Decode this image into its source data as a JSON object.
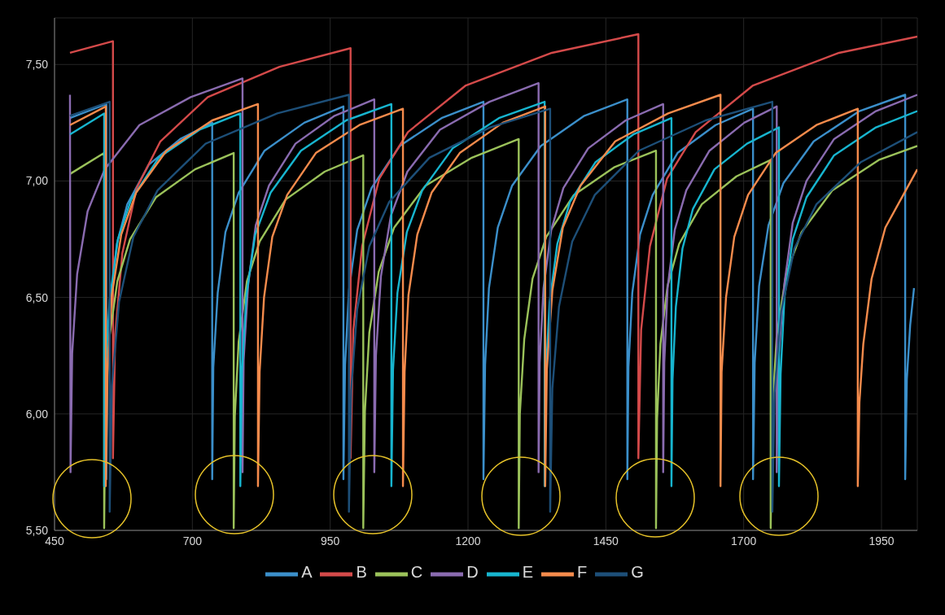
{
  "chart_data": {
    "type": "line",
    "xlim": [
      450,
      2015
    ],
    "xticks": [
      450,
      700,
      950,
      1200,
      1450,
      1700,
      1950
    ],
    "ylim": [
      5.5,
      7.7
    ],
    "yticks": [
      {
        "value": 5.5,
        "label": "5,50"
      },
      {
        "value": 6,
        "label": "6,00"
      },
      {
        "value": 6.5,
        "label": "6,50"
      },
      {
        "value": 7,
        "label": "7,00"
      },
      {
        "value": 7.5,
        "label": "7,50"
      }
    ],
    "grid": true,
    "legend": "bottom",
    "series": [
      {
        "name": "A",
        "color": "#3b8fca",
        "x": [
          478,
          544,
          544,
          546,
          552,
          563,
          582,
          621,
          678,
          736,
          736,
          738,
          746,
          760,
          784,
          831,
          903,
          974,
          974,
          977,
          984,
          999,
          1025,
          1076,
          1152,
          1228,
          1228,
          1231,
          1238,
          1254,
          1280,
          1332,
          1411,
          1489,
          1489,
          1491,
          1498,
          1512,
          1535,
          1580,
          1649,
          1717,
          1717,
          1720,
          1728,
          1745,
          1772,
          1827,
          1910,
          1993,
          1993,
          1996,
          2002,
          2009
        ],
        "values": [
          7.27,
          7.33,
          5.72,
          6.18,
          6.49,
          6.73,
          6.9,
          7.07,
          7.18,
          7.25,
          5.72,
          6.2,
          6.52,
          6.78,
          6.95,
          7.13,
          7.25,
          7.32,
          5.72,
          6.21,
          6.53,
          6.79,
          6.97,
          7.15,
          7.27,
          7.34,
          5.72,
          6.21,
          6.54,
          6.8,
          6.98,
          7.15,
          7.28,
          7.35,
          5.72,
          6.2,
          6.52,
          6.77,
          6.94,
          7.12,
          7.24,
          7.31,
          5.72,
          6.22,
          6.55,
          6.81,
          6.99,
          7.17,
          7.3,
          7.37,
          5.72,
          6.15,
          6.38,
          6.54
        ]
      },
      {
        "name": "B",
        "color": "#d44a4a",
        "x": [
          478,
          556,
          556,
          560,
          573,
          599,
          642,
          728,
          858,
          987,
          987,
          992,
          1008,
          1039,
          1091,
          1196,
          1352,
          1509,
          1509,
          1514,
          1530,
          1561,
          1613,
          1717,
          1873,
          2015
        ],
        "values": [
          7.55,
          7.6,
          5.81,
          6.34,
          6.69,
          6.97,
          7.17,
          7.36,
          7.49,
          7.57,
          5.81,
          6.36,
          6.72,
          7.01,
          7.21,
          7.41,
          7.55,
          7.63,
          5.81,
          6.36,
          6.72,
          7.01,
          7.21,
          7.41,
          7.55,
          7.62
        ]
      },
      {
        "name": "C",
        "color": "#9bc25a",
        "x": [
          478,
          540,
          540,
          542,
          549,
          564,
          587,
          634,
          705,
          775,
          775,
          777,
          784,
          799,
          822,
          869,
          940,
          1010,
          1010,
          1013,
          1021,
          1038,
          1066,
          1123,
          1207,
          1292,
          1292,
          1294,
          1302,
          1317,
          1342,
          1392,
          1466,
          1541,
          1541,
          1543,
          1549,
          1562,
          1583,
          1624,
          1687,
          1749,
          1749,
          1752,
          1760,
          1777,
          1805,
          1861,
          1945,
          2015
        ],
        "values": [
          7.03,
          7.12,
          5.51,
          5.99,
          6.32,
          6.57,
          6.75,
          6.93,
          7.05,
          7.12,
          5.51,
          5.99,
          6.31,
          6.57,
          6.74,
          6.92,
          7.04,
          7.11,
          5.51,
          6.01,
          6.35,
          6.61,
          6.8,
          6.98,
          7.1,
          7.18,
          5.51,
          6.0,
          6.32,
          6.58,
          6.76,
          6.94,
          7.06,
          7.13,
          5.51,
          5.98,
          6.3,
          6.55,
          6.73,
          6.9,
          7.02,
          7.09,
          5.51,
          6.01,
          6.34,
          6.6,
          6.78,
          6.96,
          7.09,
          7.15
        ]
      },
      {
        "name": "D",
        "color": "#8a6bb0",
        "x": [
          478,
          479,
          482,
          491,
          510,
          541,
          604,
          697,
          791,
          791,
          793,
          801,
          815,
          839,
          887,
          958,
          1030,
          1030,
          1033,
          1042,
          1060,
          1090,
          1149,
          1239,
          1328,
          1328,
          1330,
          1337,
          1351,
          1373,
          1418,
          1486,
          1554,
          1554,
          1556,
          1562,
          1575,
          1596,
          1638,
          1701,
          1760,
          1760,
          1763,
          1774,
          1789,
          1814,
          1864,
          1940,
          2015
        ],
        "values": [
          7.37,
          5.75,
          6.26,
          6.6,
          6.87,
          7.05,
          7.24,
          7.36,
          7.44,
          5.75,
          6.23,
          6.55,
          6.81,
          6.98,
          7.16,
          7.28,
          7.35,
          5.75,
          6.25,
          6.59,
          6.85,
          7.04,
          7.22,
          7.34,
          7.42,
          5.75,
          6.22,
          6.54,
          6.79,
          6.97,
          7.14,
          7.26,
          7.33,
          5.75,
          6.22,
          6.54,
          6.79,
          6.96,
          7.13,
          7.25,
          7.32,
          5.75,
          6.24,
          6.56,
          6.82,
          7.0,
          7.18,
          7.3,
          7.37
        ]
      },
      {
        "name": "E",
        "color": "#17b5cf",
        "x": [
          478,
          540,
          540,
          542,
          550,
          565,
          589,
          639,
          713,
          787,
          787,
          790,
          798,
          814,
          842,
          897,
          979,
          1061,
          1061,
          1064,
          1072,
          1089,
          1117,
          1172,
          1256,
          1339,
          1339,
          1341,
          1348,
          1362,
          1385,
          1431,
          1500,
          1569,
          1569,
          1571,
          1577,
          1589,
          1608,
          1647,
          1706,
          1764,
          1764,
          1767,
          1774,
          1789,
          1814,
          1864,
          1940,
          2015
        ],
        "values": [
          7.2,
          7.29,
          5.69,
          6.17,
          6.49,
          6.75,
          6.92,
          7.1,
          7.22,
          7.29,
          5.69,
          6.18,
          6.51,
          6.77,
          6.95,
          7.13,
          7.26,
          7.33,
          5.69,
          6.19,
          6.52,
          6.78,
          6.96,
          7.14,
          7.27,
          7.34,
          5.69,
          6.16,
          6.48,
          6.73,
          6.91,
          7.08,
          7.2,
          7.27,
          5.69,
          6.15,
          6.46,
          6.71,
          6.88,
          7.05,
          7.16,
          7.23,
          5.69,
          6.17,
          6.5,
          6.75,
          6.93,
          7.11,
          7.23,
          7.3
        ]
      },
      {
        "name": "F",
        "color": "#f58b4c",
        "x": [
          478,
          543,
          543,
          546,
          554,
          571,
          598,
          653,
          736,
          819,
          819,
          822,
          830,
          845,
          872,
          924,
          1003,
          1082,
          1082,
          1085,
          1092,
          1108,
          1134,
          1185,
          1263,
          1340,
          1340,
          1343,
          1353,
          1372,
          1404,
          1467,
          1563,
          1658,
          1658,
          1660,
          1668,
          1683,
          1708,
          1758,
          1832,
          1907,
          1907,
          1910,
          1917,
          1932,
          1957,
          2015
        ],
        "values": [
          7.24,
          7.32,
          5.69,
          6.18,
          6.51,
          6.77,
          6.95,
          7.13,
          7.26,
          7.33,
          5.69,
          6.18,
          6.5,
          6.76,
          6.94,
          7.12,
          7.24,
          7.31,
          5.69,
          6.18,
          6.51,
          6.77,
          6.95,
          7.12,
          7.25,
          7.32,
          5.69,
          6.19,
          6.53,
          6.8,
          6.98,
          7.17,
          7.29,
          7.37,
          5.69,
          6.18,
          6.5,
          6.76,
          6.94,
          7.12,
          7.24,
          7.31,
          5.69,
          6.05,
          6.3,
          6.58,
          6.8,
          7.05
        ]
      },
      {
        "name": "G",
        "color": "#1d4f78",
        "x": [
          478,
          550,
          550,
          554,
          567,
          593,
          637,
          724,
          854,
          984,
          984,
          988,
          999,
          1021,
          1057,
          1130,
          1240,
          1349,
          1349,
          1353,
          1365,
          1389,
          1430,
          1510,
          1631,
          1752,
          1752,
          1756,
          1768,
          1792,
          1832,
          1912,
          2015
        ],
        "values": [
          7.28,
          7.34,
          5.58,
          6.12,
          6.48,
          6.76,
          6.96,
          7.16,
          7.29,
          7.37,
          5.58,
          6.1,
          6.45,
          6.72,
          6.91,
          7.1,
          7.23,
          7.31,
          5.58,
          6.11,
          6.46,
          6.74,
          6.94,
          7.13,
          7.26,
          7.34,
          5.58,
          6.09,
          6.44,
          6.71,
          6.9,
          7.08,
          7.21
        ]
      }
    ]
  }
}
